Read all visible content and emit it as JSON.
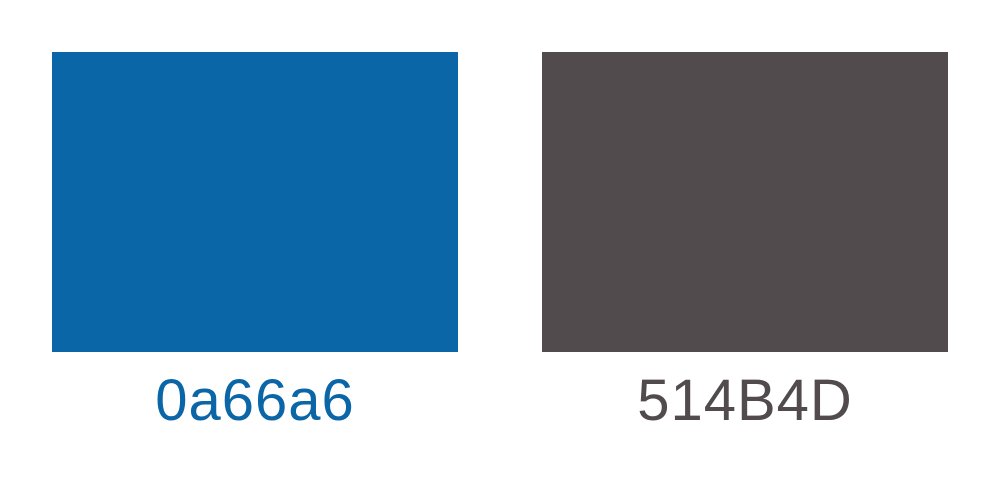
{
  "swatches": [
    {
      "label": "0a66a6",
      "color": "#0a66a6",
      "text_color": "#0a66a6"
    },
    {
      "label": "514B4D",
      "color": "#514B4D",
      "text_color": "#514B4D"
    }
  ]
}
